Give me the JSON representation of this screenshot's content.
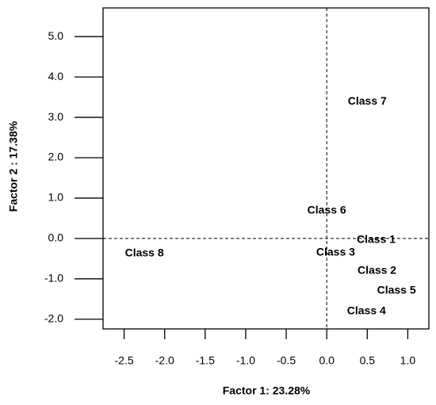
{
  "chart_data": {
    "type": "scatter",
    "xlabel": "Factor 1: 23.28%",
    "ylabel": "Factor 2 : 17.38%",
    "labels": [
      "Class 1",
      "Class 2",
      "Class 3",
      "Class 4",
      "Class 5",
      "Class 6",
      "Class 7",
      "Class 8"
    ],
    "x": [
      0.61,
      0.62,
      0.11,
      0.49,
      0.86,
      0.0,
      0.5,
      -2.25
    ],
    "values": [
      -0.04,
      -0.8,
      -0.35,
      -1.8,
      -1.29,
      0.69,
      3.39,
      -0.37
    ],
    "xlim": [
      -2.76,
      1.26
    ],
    "ylim": [
      -2.24,
      5.71
    ],
    "xticks": [
      -2.5,
      {
        "value": -2,
        "label": "-2.0"
      },
      -1.5,
      {
        "value": -1,
        "label": "-1.0"
      },
      -0.5,
      {
        "value": 0,
        "label": "0.0"
      },
      0.5,
      {
        "value": 1,
        "label": "1.0"
      }
    ],
    "yticks": [
      {
        "value": -2,
        "label": "-2.0"
      },
      {
        "value": -1,
        "label": "-1.0"
      },
      {
        "value": 0,
        "label": "0.0"
      },
      {
        "value": 1,
        "label": "1.0"
      },
      {
        "value": 2,
        "label": "2.0"
      },
      {
        "value": 3,
        "label": "3.0"
      },
      {
        "value": 4,
        "label": "4.0"
      },
      {
        "value": 5,
        "label": "5.0"
      }
    ],
    "zero_lines": true,
    "color": "#000000"
  }
}
